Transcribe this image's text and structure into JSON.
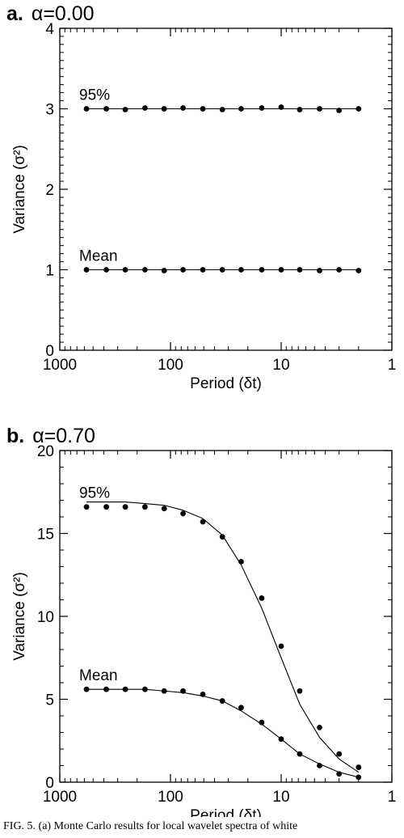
{
  "caption": "FIG. 5. (a) Monte Carlo results for local wavelet spectra of white",
  "chart_data": [
    {
      "type": "scatter",
      "panel_label": "a.",
      "title": "α=0.00",
      "xlabel": "Period (δt)",
      "ylabel": "Variance (σ²)",
      "x_scale": "log",
      "x_reversed": true,
      "xlim": [
        1000,
        1
      ],
      "ylim": [
        0,
        4
      ],
      "xticks": [
        1000,
        100,
        10,
        1
      ],
      "yticks": [
        0,
        1,
        2,
        3,
        4
      ],
      "grid": false,
      "x": [
        574,
        380,
        256,
        170,
        114,
        77,
        51,
        34,
        23,
        15,
        10,
        6.8,
        4.5,
        3.0,
        2.0
      ],
      "series": [
        {
          "name": "95%",
          "values": [
            3.0,
            3.0,
            2.99,
            3.01,
            3.0,
            3.01,
            3.0,
            2.99,
            3.0,
            3.01,
            3.02,
            2.99,
            3.0,
            2.98,
            3.0
          ],
          "fit": [
            3.0,
            3.0,
            3.0,
            3.0,
            3.0,
            3.0,
            3.0,
            3.0,
            3.0,
            3.0,
            3.0,
            3.0,
            3.0,
            3.0,
            3.0
          ]
        },
        {
          "name": "Mean",
          "values": [
            1.0,
            1.0,
            1.0,
            1.0,
            0.99,
            1.0,
            1.0,
            1.0,
            1.0,
            1.0,
            1.0,
            1.0,
            0.99,
            1.0,
            0.99
          ],
          "fit": [
            1.0,
            1.0,
            1.0,
            1.0,
            1.0,
            1.0,
            1.0,
            1.0,
            1.0,
            1.0,
            1.0,
            1.0,
            1.0,
            1.0,
            1.0
          ]
        }
      ]
    },
    {
      "type": "scatter",
      "panel_label": "b.",
      "title": "α=0.70",
      "xlabel": "Period (δt)",
      "ylabel": "Variance (σ²)",
      "x_scale": "log",
      "x_reversed": true,
      "xlim": [
        1000,
        1
      ],
      "ylim": [
        0,
        20
      ],
      "xticks": [
        1000,
        100,
        10,
        1
      ],
      "yticks": [
        0,
        5,
        10,
        15,
        20
      ],
      "grid": false,
      "x": [
        574,
        380,
        256,
        170,
        114,
        77,
        51,
        34,
        23,
        15,
        10,
        6.8,
        4.5,
        3.0,
        2.0
      ],
      "series": [
        {
          "name": "95%",
          "values": [
            16.6,
            16.6,
            16.6,
            16.6,
            16.5,
            16.2,
            15.7,
            14.8,
            13.3,
            11.1,
            8.2,
            5.5,
            3.3,
            1.7,
            0.9
          ],
          "fit": [
            16.9,
            16.9,
            16.9,
            16.8,
            16.7,
            16.4,
            15.9,
            14.9,
            13.1,
            10.5,
            7.5,
            4.7,
            2.7,
            1.4,
            0.6
          ]
        },
        {
          "name": "Mean",
          "values": [
            5.6,
            5.6,
            5.6,
            5.6,
            5.5,
            5.5,
            5.3,
            4.9,
            4.5,
            3.6,
            2.6,
            1.7,
            1.0,
            0.5,
            0.3
          ],
          "fit": [
            5.6,
            5.6,
            5.6,
            5.6,
            5.5,
            5.4,
            5.2,
            4.9,
            4.3,
            3.5,
            2.6,
            1.7,
            1.1,
            0.6,
            0.3
          ]
        }
      ]
    }
  ]
}
